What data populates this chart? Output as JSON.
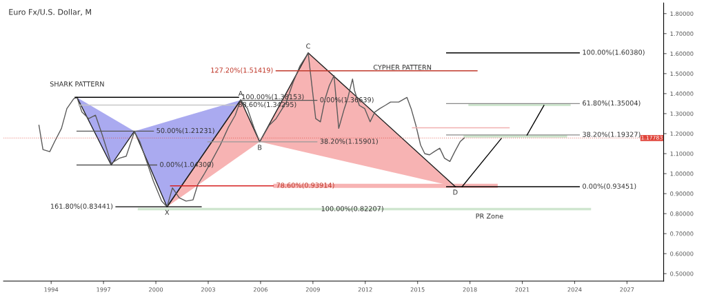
{
  "chart_data": {
    "type": "line",
    "title": "Euro Fx/U.S. Dollar, M",
    "xlim": [
      1991.27,
      2029.1
    ],
    "ylim": [
      0.463,
      1.853
    ],
    "xticks": [
      1994,
      1997,
      2000,
      2003,
      2006,
      2009,
      2012,
      2015,
      2018,
      2021,
      2024,
      2027
    ],
    "yticks": [
      {
        "value": 0.5,
        "label": "0.50000"
      },
      {
        "value": 0.6,
        "label": "0.60000"
      },
      {
        "value": 0.7,
        "label": "0.70000"
      },
      {
        "value": 0.8,
        "label": "0.80000"
      },
      {
        "value": 0.9,
        "label": "0.90000"
      },
      {
        "value": 1.0,
        "label": "1.00000"
      },
      {
        "value": 1.1,
        "label": "1.10000"
      },
      {
        "value": 1.2,
        "label": "1.20000"
      },
      {
        "value": 1.3,
        "label": "1.30000"
      },
      {
        "value": 1.4,
        "label": "1.40000"
      },
      {
        "value": 1.5,
        "label": "1.50000"
      },
      {
        "value": 1.6,
        "label": "1.60000"
      },
      {
        "value": 1.7,
        "label": "1.70000"
      },
      {
        "value": 1.8,
        "label": "1.80000"
      }
    ],
    "series": [
      {
        "type": "area",
        "color": "#aaaaf0",
        "x": [
          1995.48,
          1997.44,
          1998.77,
          1995.48
        ],
        "values": [
          1.381,
          1.043,
          1.212,
          1.381
        ]
      },
      {
        "type": "area",
        "color": "#aaaaf0",
        "x": [
          1998.77,
          2000.64,
          2004.86,
          1998.77
        ],
        "values": [
          1.212,
          0.834,
          1.368,
          1.212
        ]
      },
      {
        "type": "area",
        "color": "#f7b3b3",
        "x": [
          2000.64,
          2004.86,
          2005.95,
          2000.64
        ],
        "values": [
          0.834,
          1.368,
          1.159,
          0.834
        ]
      },
      {
        "type": "area",
        "color": "#f7b3b3",
        "x": [
          2005.95,
          2008.73,
          2017.16,
          2005.95
        ],
        "values": [
          1.159,
          1.604,
          0.935,
          1.159
        ]
      },
      {
        "type": "area",
        "color": "#f7b3b3",
        "x": [
          2006.73,
          2019.59,
          2019.59,
          2006.73,
          2006.73
        ],
        "values": [
          0.929,
          0.929,
          0.949,
          0.949,
          0.929
        ]
      },
      {
        "type": "area",
        "color": "#cfe6cf",
        "x": [
          1998.96,
          2024.94,
          2024.94,
          1998.96,
          1998.96
        ],
        "values": [
          0.817,
          0.817,
          0.829,
          0.829,
          0.817
        ]
      },
      {
        "type": "area",
        "color": "#cfe6cf",
        "x": [
          2017.91,
          2023.77,
          2023.77,
          2017.91,
          2017.91
        ],
        "values": [
          1.338,
          1.338,
          1.35004,
          1.35004,
          1.338
        ]
      },
      {
        "type": "area",
        "color": "#cfe6cf",
        "x": [
          2017.63,
          2023.57,
          2023.57,
          2017.63,
          2017.63
        ],
        "values": [
          1.18,
          1.18,
          1.19327,
          1.19327,
          1.18
        ]
      },
      {
        "color": "#222222",
        "x": [
          1995.48,
          1997.44,
          1998.77,
          2000.64,
          2004.86
        ],
        "values": [
          1.381,
          1.043,
          1.212,
          0.834,
          1.368
        ]
      },
      {
        "color": "#222222",
        "x": [
          2000.64,
          2004.86,
          2005.95,
          2008.73,
          2017.16
        ],
        "values": [
          0.834,
          1.368,
          1.159,
          1.604,
          0.935
        ]
      },
      {
        "color": "#5a5a5a",
        "x": [
          1993.3,
          1993.53,
          1993.92,
          1994.2,
          1994.59,
          1994.9,
          1995.29,
          1995.48,
          1995.76,
          1996.15,
          1996.54,
          1996.93,
          1997.44,
          1997.91,
          1998.3,
          1998.77,
          1999.08,
          1999.47,
          1999.86,
          2000.33,
          2000.64,
          2000.95,
          2001.34,
          2001.73,
          2002.13,
          2002.4,
          2002.79,
          2003.18,
          2003.69,
          2004.16,
          2004.55,
          2004.86,
          2005.25,
          2005.64,
          2005.95,
          2006.5,
          2006.89,
          2007.48,
          2007.87,
          2008.26,
          2008.73,
          2008.92,
          2009.16,
          2009.43,
          2009.7,
          2009.94,
          2010.21,
          2010.48,
          2010.8,
          2010.99,
          2011.27,
          2011.38,
          2011.66,
          2011.97,
          2012.28,
          2012.55,
          2012.83,
          2013.14,
          2013.45,
          2013.92,
          2014.39,
          2014.63,
          2014.9,
          2015.17,
          2015.41,
          2015.68,
          2015.95,
          2016.27,
          2016.54,
          2016.85,
          2017.13,
          2017.44,
          2017.67
        ],
        "values": [
          1.242,
          1.12,
          1.11,
          1.16,
          1.226,
          1.325,
          1.374,
          1.381,
          1.308,
          1.275,
          1.292,
          1.193,
          1.051,
          1.077,
          1.087,
          1.209,
          1.16,
          1.061,
          0.962,
          0.863,
          0.834,
          0.929,
          0.879,
          0.863,
          0.869,
          0.945,
          1.001,
          1.061,
          1.143,
          1.232,
          1.292,
          1.368,
          1.325,
          1.226,
          1.16,
          1.242,
          1.275,
          1.358,
          1.457,
          1.539,
          1.602,
          1.457,
          1.275,
          1.259,
          1.374,
          1.44,
          1.49,
          1.226,
          1.325,
          1.374,
          1.473,
          1.417,
          1.341,
          1.325,
          1.259,
          1.308,
          1.325,
          1.341,
          1.358,
          1.358,
          1.381,
          1.325,
          1.242,
          1.143,
          1.1,
          1.094,
          1.11,
          1.127,
          1.077,
          1.061,
          1.11,
          1.16,
          1.178
        ]
      },
      {
        "color": "#000000",
        "x": [
          1995.37,
          2004.74
        ],
        "values": [
          1.38153,
          1.38153
        ]
      },
      {
        "color": "#c8c8c8",
        "x": [
          1995.56,
          2004.55
        ],
        "values": [
          1.34295,
          1.34295
        ]
      },
      {
        "color": "#555555",
        "x": [
          1995.48,
          1999.86
        ],
        "values": [
          1.21231,
          1.21231
        ]
      },
      {
        "color": "#555555",
        "x": [
          1995.48,
          2000.05
        ],
        "values": [
          1.043,
          1.043
        ]
      },
      {
        "color": "#000000",
        "x": [
          1997.71,
          2002.6
        ],
        "values": [
          0.83441,
          0.83441
        ]
      },
      {
        "color": "#c0392b",
        "x": [
          2006.89,
          2018.41
        ],
        "values": [
          1.51419,
          1.51419
        ]
      },
      {
        "color": "#555555",
        "x": [
          2004.86,
          2009.23
        ],
        "values": [
          1.36639,
          1.36639
        ]
      },
      {
        "color": "#999999",
        "x": [
          2002.98,
          2009.23
        ],
        "values": [
          1.15901,
          1.15901
        ]
      },
      {
        "color": "#d62020",
        "x": [
          2000.84,
          2006.73
        ],
        "values": [
          0.93914,
          0.93914
        ]
      },
      {
        "color": "#f0b0b0",
        "x": [
          2014.7,
          2020.25
        ],
        "values": [
          1.229,
          1.229
        ]
      },
      {
        "color": "#000000",
        "x": [
          2016.66,
          2024.27
        ],
        "values": [
          1.6038,
          1.6038
        ]
      },
      {
        "color": "#888888",
        "x": [
          2016.66,
          2024.27
        ],
        "values": [
          1.35004,
          1.35004
        ]
      },
      {
        "color": "#888888",
        "x": [
          2016.66,
          2024.27
        ],
        "values": [
          1.19327,
          1.19327
        ]
      },
      {
        "color": "#000000",
        "x": [
          2016.66,
          2024.27
        ],
        "values": [
          0.93451,
          0.93451
        ]
      },
      {
        "color": "#000000",
        "x": [
          2017.55,
          2019.8
        ],
        "values": [
          0.935,
          1.176
        ]
      },
      {
        "color": "#000000",
        "x": [
          2021.27,
          2022.24
        ],
        "values": [
          1.193,
          1.341
        ]
      }
    ],
    "ref_lines": [
      {
        "axis": "y",
        "value": 1.17783,
        "label": "1.17783",
        "color": "#e0463c",
        "line_style": "dotted"
      }
    ],
    "annotations": [
      "SHARK PATTERN",
      "CYPHER PATTERN",
      "PR Zone",
      {
        "text": "X",
        "x": 2000.64,
        "y": 0.834
      },
      {
        "text": "A",
        "x": 2004.86,
        "y": 1.368
      },
      {
        "text": "B",
        "x": 2005.95,
        "y": 1.159
      },
      {
        "text": "C",
        "x": 2008.73,
        "y": 1.604
      },
      {
        "text": "D",
        "x": 2017.16,
        "y": 0.935
      },
      {
        "text": "100.00%(1.38153)",
        "x": 2004.74,
        "y": 1.38153
      },
      {
        "text": "88.60%(1.34295)",
        "x": 2004.55,
        "y": 1.34295
      },
      {
        "text": "50.00%(1.21231)",
        "x": 1999.86,
        "y": 1.21231
      },
      {
        "text": "0.00%(1.04300)",
        "x": 2000.05,
        "y": 1.043
      },
      {
        "text": "161.80%(0.83441)",
        "x": 1997.71,
        "y": 0.83441
      },
      {
        "text": "127.20%(1.51419)",
        "x": 2006.89,
        "y": 1.51419
      },
      {
        "text": "0.00%(1.36639)",
        "x": 2009.23,
        "y": 1.36639
      },
      {
        "text": "38.20%(1.15901)",
        "x": 2009.23,
        "y": 1.15901
      },
      {
        "text": "78.60%(0.93914)",
        "x": 2006.73,
        "y": 0.93914
      },
      {
        "text": "100.00%(0.82207)",
        "x": 2009.3,
        "y": 0.82207
      },
      {
        "text": "100.00%(1.60380)",
        "x": 2024.27,
        "y": 1.6038
      },
      {
        "text": "61.80%(1.35004)",
        "x": 2024.27,
        "y": 1.35004
      },
      {
        "text": "38.20%(1.19327)",
        "x": 2024.27,
        "y": 1.19327
      },
      {
        "text": "0.00%(0.93451)",
        "x": 2024.27,
        "y": 0.93451
      }
    ]
  }
}
